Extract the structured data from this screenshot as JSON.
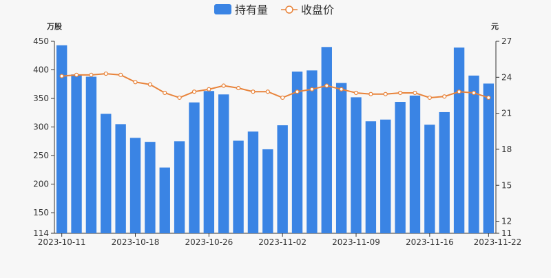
{
  "chart_data": {
    "type": "bar",
    "legend": [
      {
        "name": "持有量",
        "kind": "bar",
        "color": "#3a84e4"
      },
      {
        "name": "收盘价",
        "kind": "line",
        "color": "#e8833a"
      }
    ],
    "left_axis": {
      "unit": "万股",
      "ylim": [
        114,
        450
      ],
      "ticks": [
        "114",
        "150",
        "200",
        "250",
        "300",
        "350",
        "400",
        "450"
      ]
    },
    "right_axis": {
      "unit": "元",
      "ylim": [
        11,
        27
      ],
      "ticks": [
        "11",
        "12",
        "15",
        "18",
        "21",
        "24",
        "27"
      ]
    },
    "x_tick_labels": [
      {
        "index": 0,
        "label": "2023-10-11"
      },
      {
        "index": 5,
        "label": "2023-10-18"
      },
      {
        "index": 10,
        "label": "2023-10-26"
      },
      {
        "index": 15,
        "label": "2023-11-02"
      },
      {
        "index": 20,
        "label": "2023-11-09"
      },
      {
        "index": 25,
        "label": "2023-11-16"
      },
      {
        "index": 29,
        "label": "2023-11-22"
      }
    ],
    "series": [
      {
        "name": "持有量",
        "values": [
          443,
          392,
          388,
          323,
          305,
          281,
          274,
          229,
          275,
          343,
          363,
          357,
          276,
          292,
          261,
          303,
          397,
          399,
          440,
          377,
          352,
          310,
          313,
          344,
          355,
          304,
          326,
          439,
          390,
          376
        ]
      },
      {
        "name": "收盘价",
        "values": [
          24.1,
          24.2,
          24.2,
          24.3,
          24.2,
          23.6,
          23.4,
          22.7,
          22.3,
          22.8,
          23.0,
          23.3,
          23.1,
          22.8,
          22.8,
          22.3,
          22.8,
          23.0,
          23.3,
          23.0,
          22.7,
          22.6,
          22.6,
          22.7,
          22.7,
          22.3,
          22.4,
          22.8,
          22.7,
          22.3
        ]
      }
    ],
    "grid": false
  }
}
